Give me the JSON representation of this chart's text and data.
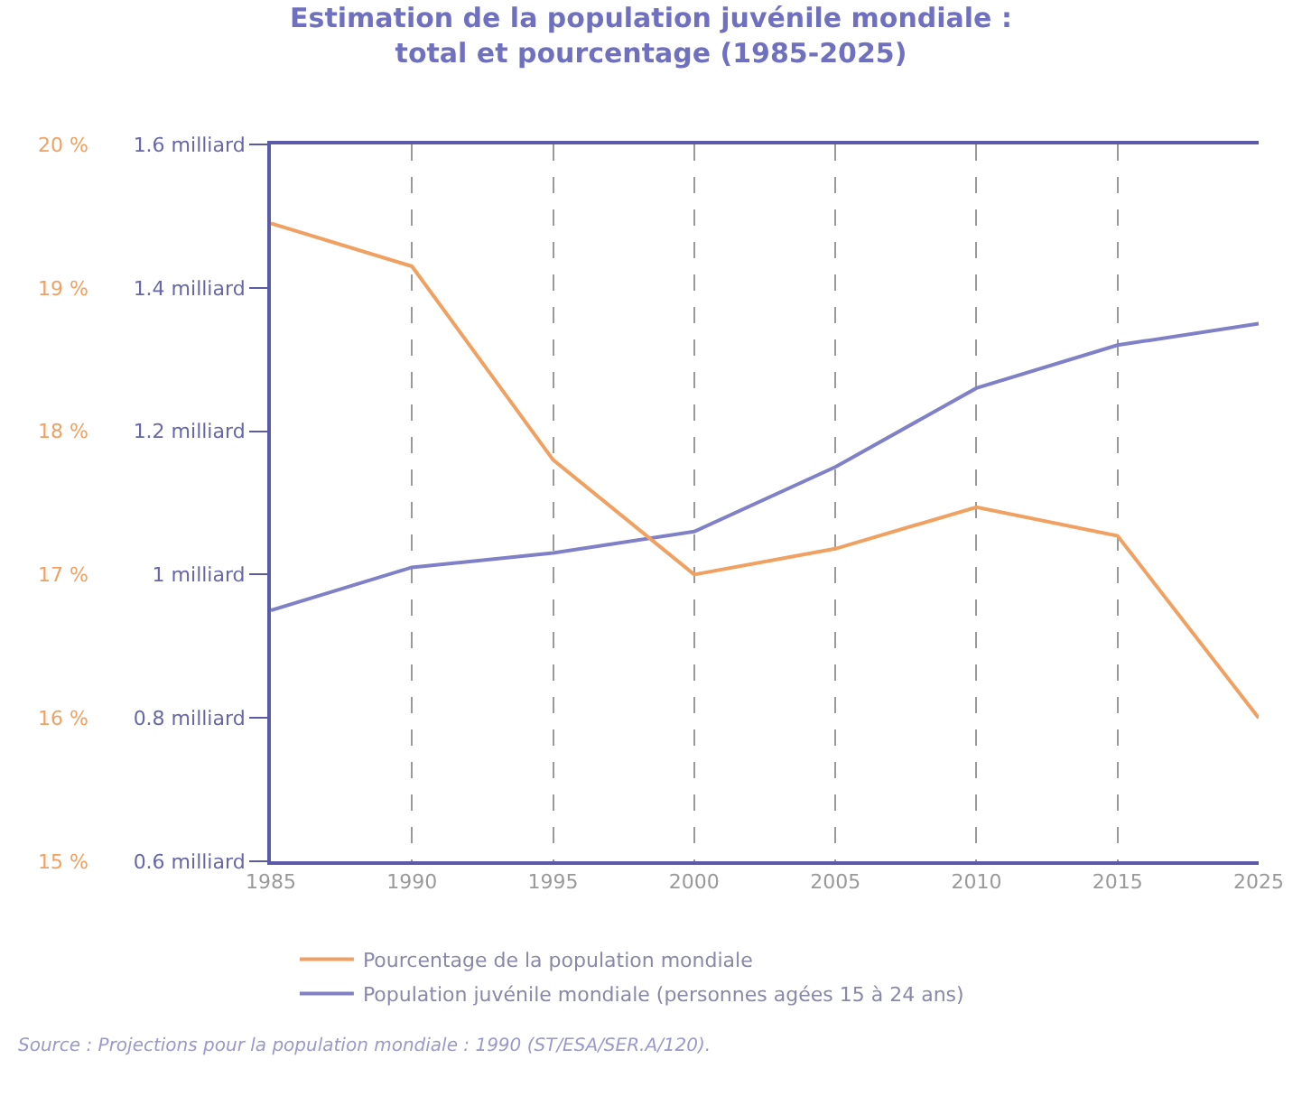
{
  "chart_data": {
    "type": "line",
    "title": "Estimation de la population juvénile mondiale :\ntotal et pourcentage (1985-2025)",
    "categories": [
      "1985",
      "1990",
      "1995",
      "2000",
      "2005",
      "2010",
      "2015",
      "2025"
    ],
    "series": [
      {
        "name": "Pourcentage de la population mondiale",
        "color": "#f0a060",
        "axis": "y2",
        "values": [
          19.45,
          19.15,
          17.8,
          17.0,
          17.18,
          17.47,
          17.27,
          16.0
        ]
      },
      {
        "name": "Population juvénile mondiale (personnes agées 15 à 24 ans)",
        "color": "#8080c8",
        "values": [
          0.95,
          1.01,
          1.03,
          1.06,
          1.15,
          1.26,
          1.32,
          1.35
        ]
      }
    ],
    "ylim": [
      0.6,
      1.6
    ],
    "yticks": [
      {
        "value": 0.6,
        "label": "0.6 milliard"
      },
      {
        "value": 0.8,
        "label": "0.8 milliard"
      },
      {
        "value": 1.0,
        "label": "1 milliard"
      },
      {
        "value": 1.2,
        "label": "1.2 milliard"
      },
      {
        "value": 1.4,
        "label": "1.4 milliard"
      },
      {
        "value": 1.6,
        "label": "1.6 milliard"
      }
    ],
    "y2lim": [
      15,
      20
    ],
    "y2ticks": [
      {
        "value": 15,
        "label": "15 %"
      },
      {
        "value": 16,
        "label": "16 %"
      },
      {
        "value": 17,
        "label": "17 %"
      },
      {
        "value": 18,
        "label": "18 %"
      },
      {
        "value": 19,
        "label": "19 %"
      },
      {
        "value": 20,
        "label": "20 %"
      }
    ],
    "grid": "x",
    "line_style": "solid",
    "marker": "none",
    "legend": "bottom",
    "annotations": [
      "Source : Projections pour la population mondiale : 1990 (ST/ESA/SER.A/120)."
    ]
  }
}
